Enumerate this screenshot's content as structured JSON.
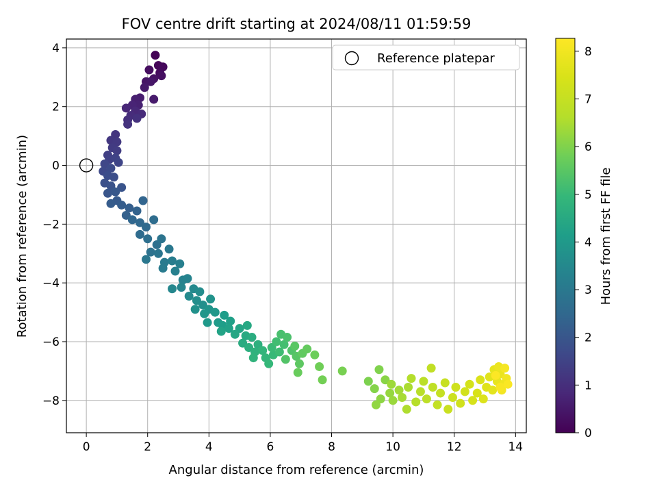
{
  "chart_data": {
    "type": "scatter",
    "title": "FOV centre drift starting at 2024/08/11 01:59:59",
    "xlabel": "Angular distance from reference (arcmin)",
    "ylabel": "Rotation from reference (arcmin)",
    "colorbar_label": "Hours from first FF file",
    "xlim": [
      -0.65,
      14.35
    ],
    "ylim": [
      -9.1,
      4.3
    ],
    "x_ticks": [
      0,
      2,
      4,
      6,
      8,
      10,
      12,
      14
    ],
    "y_ticks": [
      -8,
      -6,
      -4,
      -2,
      0,
      2,
      4
    ],
    "colorbar_range": [
      0,
      8.27
    ],
    "colorbar_ticks": [
      0,
      1,
      2,
      3,
      4,
      5,
      6,
      7,
      8
    ],
    "colormap": "viridis",
    "grid": true,
    "legend": {
      "placement": "top-right",
      "label": "Reference platepar"
    },
    "reference_point": {
      "x": 0,
      "y": 0
    },
    "series": [
      {
        "points": [
          [
            2.25,
            3.75,
            0.05
          ],
          [
            2.35,
            3.4,
            0.1
          ],
          [
            2.5,
            3.35,
            0.15
          ],
          [
            2.4,
            3.15,
            0.2
          ],
          [
            2.05,
            3.25,
            0.25
          ],
          [
            2.45,
            3.05,
            0.3
          ],
          [
            2.2,
            2.95,
            0.35
          ],
          [
            1.95,
            2.85,
            0.4
          ],
          [
            2.1,
            2.85,
            0.45
          ],
          [
            1.9,
            2.65,
            0.5
          ],
          [
            2.2,
            2.25,
            0.55
          ],
          [
            1.75,
            2.3,
            0.6
          ],
          [
            1.6,
            2.25,
            0.65
          ],
          [
            1.7,
            2.05,
            0.7
          ],
          [
            1.5,
            2.05,
            0.75
          ],
          [
            1.3,
            1.95,
            0.8
          ],
          [
            1.6,
            1.85,
            0.85
          ],
          [
            1.8,
            1.75,
            0.9
          ],
          [
            1.45,
            1.7,
            0.95
          ],
          [
            1.35,
            1.55,
            1.0
          ],
          [
            1.65,
            1.6,
            1.05
          ],
          [
            1.35,
            1.4,
            1.1
          ],
          [
            0.95,
            1.05,
            1.15
          ],
          [
            0.8,
            0.85,
            1.2
          ],
          [
            1.0,
            0.8,
            1.25
          ],
          [
            0.85,
            0.6,
            1.3
          ],
          [
            1.0,
            0.5,
            1.35
          ],
          [
            0.7,
            0.35,
            1.4
          ],
          [
            0.75,
            0.2,
            1.45
          ],
          [
            0.95,
            0.25,
            1.5
          ],
          [
            1.05,
            0.1,
            1.55
          ],
          [
            0.6,
            0.05,
            1.6
          ],
          [
            0.55,
            -0.2,
            1.65
          ],
          [
            0.8,
            -0.1,
            1.7
          ],
          [
            0.7,
            -0.35,
            1.75
          ],
          [
            0.9,
            -0.4,
            1.8
          ],
          [
            0.6,
            -0.6,
            1.85
          ],
          [
            0.8,
            -0.7,
            1.9
          ],
          [
            1.15,
            -0.75,
            1.95
          ],
          [
            0.7,
            -0.95,
            2.0
          ],
          [
            0.95,
            -0.9,
            2.05
          ],
          [
            1.0,
            -1.2,
            2.1
          ],
          [
            0.8,
            -1.3,
            2.15
          ],
          [
            1.15,
            -1.35,
            2.2
          ],
          [
            1.4,
            -1.45,
            2.25
          ],
          [
            1.3,
            -1.7,
            2.3
          ],
          [
            1.65,
            -1.55,
            2.35
          ],
          [
            1.85,
            -1.2,
            2.4
          ],
          [
            1.5,
            -1.85,
            2.45
          ],
          [
            1.75,
            -1.95,
            2.5
          ],
          [
            1.95,
            -2.1,
            2.55
          ],
          [
            1.75,
            -2.35,
            2.6
          ],
          [
            2.2,
            -1.85,
            2.65
          ],
          [
            2.0,
            -2.5,
            2.7
          ],
          [
            2.3,
            -2.7,
            2.75
          ],
          [
            2.1,
            -2.95,
            2.8
          ],
          [
            2.45,
            -2.5,
            2.85
          ],
          [
            2.35,
            -3.0,
            2.9
          ],
          [
            1.95,
            -3.2,
            2.95
          ],
          [
            2.7,
            -2.85,
            3.0
          ],
          [
            2.55,
            -3.3,
            3.05
          ],
          [
            2.5,
            -3.5,
            3.1
          ],
          [
            2.8,
            -3.25,
            3.15
          ],
          [
            3.05,
            -3.35,
            3.2
          ],
          [
            2.9,
            -3.6,
            3.25
          ],
          [
            3.15,
            -3.9,
            3.3
          ],
          [
            3.3,
            -3.85,
            3.35
          ],
          [
            3.1,
            -4.15,
            3.4
          ],
          [
            2.8,
            -4.2,
            3.45
          ],
          [
            3.5,
            -4.2,
            3.5
          ],
          [
            3.35,
            -4.45,
            3.55
          ],
          [
            3.7,
            -4.3,
            3.6
          ],
          [
            3.6,
            -4.6,
            3.65
          ],
          [
            3.8,
            -4.75,
            3.7
          ],
          [
            3.55,
            -4.9,
            3.75
          ],
          [
            4.05,
            -4.55,
            3.8
          ],
          [
            4.0,
            -4.9,
            3.85
          ],
          [
            3.85,
            -5.05,
            3.9
          ],
          [
            4.2,
            -5.0,
            3.95
          ],
          [
            3.95,
            -5.35,
            4.0
          ],
          [
            4.3,
            -5.35,
            4.05
          ],
          [
            4.5,
            -5.1,
            4.1
          ],
          [
            4.45,
            -5.45,
            4.15
          ],
          [
            4.7,
            -5.3,
            4.2
          ],
          [
            4.65,
            -5.55,
            4.25
          ],
          [
            4.4,
            -5.65,
            4.3
          ],
          [
            5.0,
            -5.55,
            4.35
          ],
          [
            4.85,
            -5.75,
            4.4
          ],
          [
            5.25,
            -5.45,
            4.45
          ],
          [
            5.2,
            -5.8,
            4.5
          ],
          [
            5.1,
            -6.05,
            4.55
          ],
          [
            5.4,
            -5.85,
            4.6
          ],
          [
            5.3,
            -6.2,
            4.65
          ],
          [
            5.6,
            -6.1,
            4.7
          ],
          [
            5.5,
            -6.35,
            4.75
          ],
          [
            5.45,
            -6.55,
            4.8
          ],
          [
            5.75,
            -6.3,
            4.85
          ],
          [
            5.85,
            -6.55,
            4.9
          ],
          [
            5.95,
            -6.75,
            4.95
          ],
          [
            6.1,
            -6.45,
            5.0
          ],
          [
            6.05,
            -6.2,
            5.05
          ],
          [
            6.3,
            -6.35,
            5.1
          ],
          [
            6.2,
            -6.0,
            5.15
          ],
          [
            6.45,
            -6.1,
            5.2
          ],
          [
            6.35,
            -5.75,
            5.25
          ],
          [
            6.55,
            -5.85,
            5.3
          ],
          [
            6.7,
            -6.3,
            5.35
          ],
          [
            6.5,
            -6.6,
            5.4
          ],
          [
            6.85,
            -6.5,
            5.45
          ],
          [
            6.8,
            -6.15,
            5.5
          ],
          [
            6.95,
            -6.75,
            5.55
          ],
          [
            7.05,
            -6.4,
            5.6
          ],
          [
            7.2,
            -6.25,
            5.65
          ],
          [
            6.9,
            -7.05,
            5.7
          ],
          [
            7.45,
            -6.45,
            5.75
          ],
          [
            7.6,
            -6.85,
            5.8
          ],
          [
            7.7,
            -7.3,
            5.85
          ],
          [
            8.35,
            -7.0,
            5.9
          ],
          [
            9.2,
            -7.35,
            5.95
          ],
          [
            9.55,
            -6.95,
            6.0
          ],
          [
            9.4,
            -7.6,
            6.05
          ],
          [
            9.75,
            -7.3,
            6.1
          ],
          [
            9.6,
            -7.95,
            6.15
          ],
          [
            9.45,
            -8.15,
            6.2
          ],
          [
            9.9,
            -7.75,
            6.25
          ],
          [
            10.0,
            -8.0,
            6.3
          ],
          [
            9.95,
            -7.45,
            6.35
          ],
          [
            10.2,
            -7.65,
            6.4
          ],
          [
            10.3,
            -7.9,
            6.45
          ],
          [
            10.5,
            -7.55,
            6.5
          ],
          [
            10.45,
            -8.3,
            6.55
          ],
          [
            10.6,
            -7.25,
            6.6
          ],
          [
            10.75,
            -8.05,
            6.65
          ],
          [
            10.9,
            -7.7,
            6.7
          ],
          [
            11.0,
            -7.35,
            6.75
          ],
          [
            11.1,
            -7.95,
            6.8
          ],
          [
            11.3,
            -7.55,
            6.85
          ],
          [
            11.25,
            -6.9,
            6.9
          ],
          [
            11.45,
            -8.15,
            6.95
          ],
          [
            11.55,
            -7.75,
            7.0
          ],
          [
            11.7,
            -7.4,
            7.05
          ],
          [
            11.8,
            -8.3,
            7.1
          ],
          [
            11.95,
            -7.9,
            7.15
          ],
          [
            12.05,
            -7.55,
            7.2
          ],
          [
            12.2,
            -8.1,
            7.25
          ],
          [
            12.35,
            -7.7,
            7.3
          ],
          [
            12.5,
            -7.45,
            7.35
          ],
          [
            12.6,
            -8.0,
            7.4
          ],
          [
            12.75,
            -7.75,
            7.45
          ],
          [
            12.85,
            -7.3,
            7.5
          ],
          [
            12.95,
            -7.95,
            7.55
          ],
          [
            13.05,
            -7.55,
            7.6
          ],
          [
            13.15,
            -7.2,
            7.65
          ],
          [
            13.25,
            -7.65,
            7.7
          ],
          [
            13.3,
            -6.95,
            7.75
          ],
          [
            13.4,
            -7.35,
            7.8
          ],
          [
            13.5,
            -7.1,
            7.85
          ],
          [
            13.45,
            -6.85,
            7.9
          ],
          [
            13.6,
            -7.45,
            7.95
          ],
          [
            13.7,
            -7.25,
            8.0
          ],
          [
            13.55,
            -7.65,
            8.05
          ],
          [
            13.65,
            -6.9,
            8.1
          ],
          [
            13.5,
            -7.55,
            8.15
          ],
          [
            13.75,
            -7.45,
            8.2
          ],
          [
            13.35,
            -7.15,
            8.25
          ]
        ]
      }
    ]
  }
}
